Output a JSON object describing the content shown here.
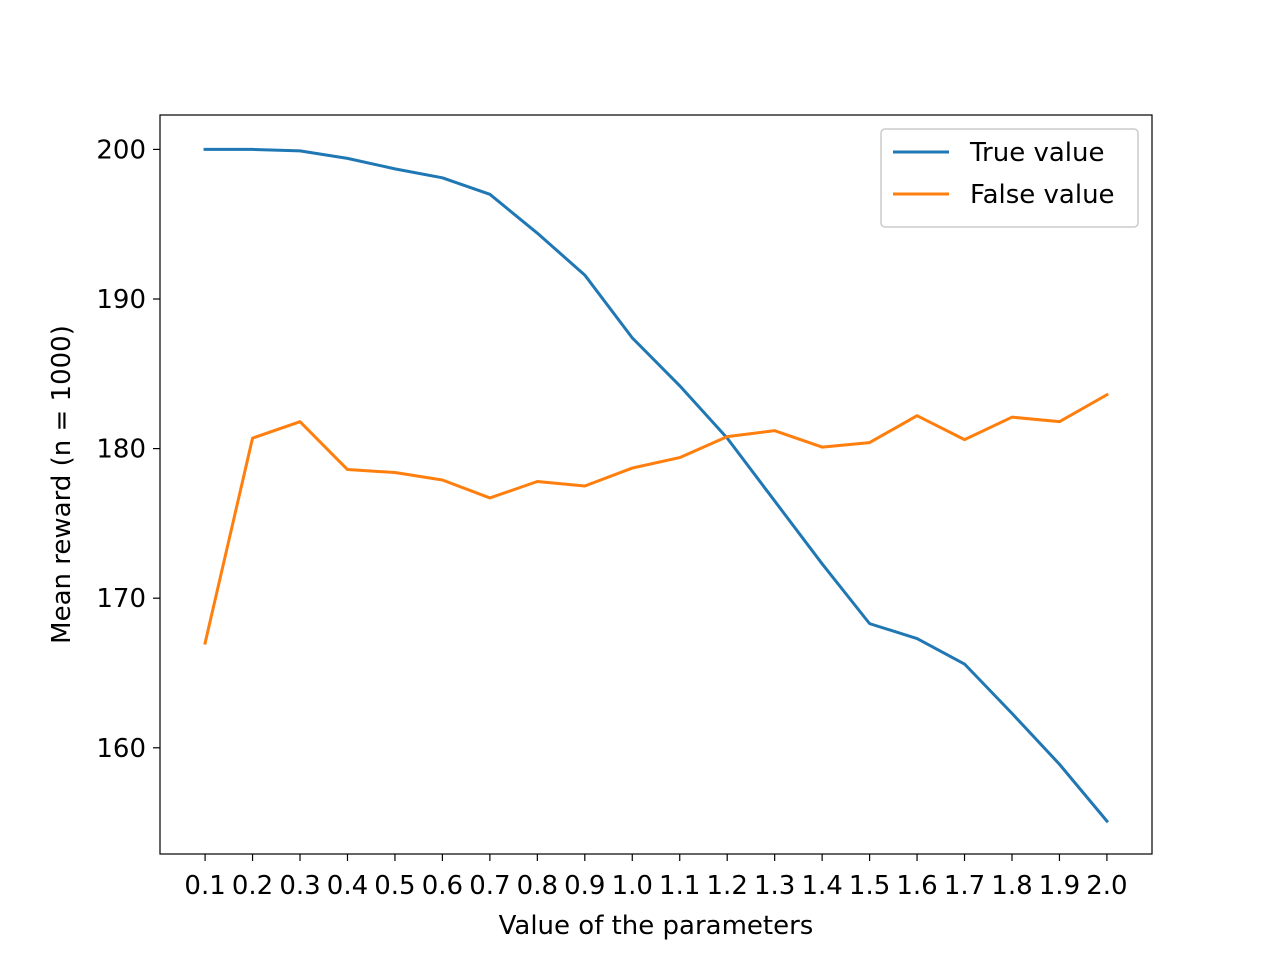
{
  "chart_data": {
    "type": "line",
    "title": "",
    "xlabel": "Value of the parameters",
    "ylabel": "Mean reward (n = 1000)",
    "x": [
      "0.1",
      "0.2",
      "0.3",
      "0.4",
      "0.5",
      "0.6",
      "0.7",
      "0.8",
      "0.9",
      "1.0",
      "1.1",
      "1.2",
      "1.3",
      "1.4",
      "1.5",
      "1.6",
      "1.7",
      "1.8",
      "1.9",
      "2.0"
    ],
    "yticks": [
      160,
      170,
      180,
      190,
      200
    ],
    "ylim": [
      152.9,
      202.3
    ],
    "grid": false,
    "legend_position": "upper right",
    "series": [
      {
        "name": "True value",
        "color": "#1f77b4",
        "values": [
          200.0,
          200.0,
          199.9,
          199.4,
          198.7,
          198.1,
          197.0,
          194.4,
          191.6,
          187.4,
          184.2,
          180.7,
          176.5,
          172.3,
          168.3,
          167.3,
          165.6,
          162.3,
          158.9,
          155.1
        ]
      },
      {
        "name": "False value",
        "color": "#ff7f0e",
        "values": [
          167.0,
          180.7,
          181.8,
          178.6,
          178.4,
          177.9,
          176.7,
          177.8,
          177.5,
          178.7,
          179.4,
          180.8,
          181.2,
          180.1,
          180.4,
          182.2,
          180.6,
          182.1,
          181.8,
          183.6
        ]
      }
    ]
  }
}
